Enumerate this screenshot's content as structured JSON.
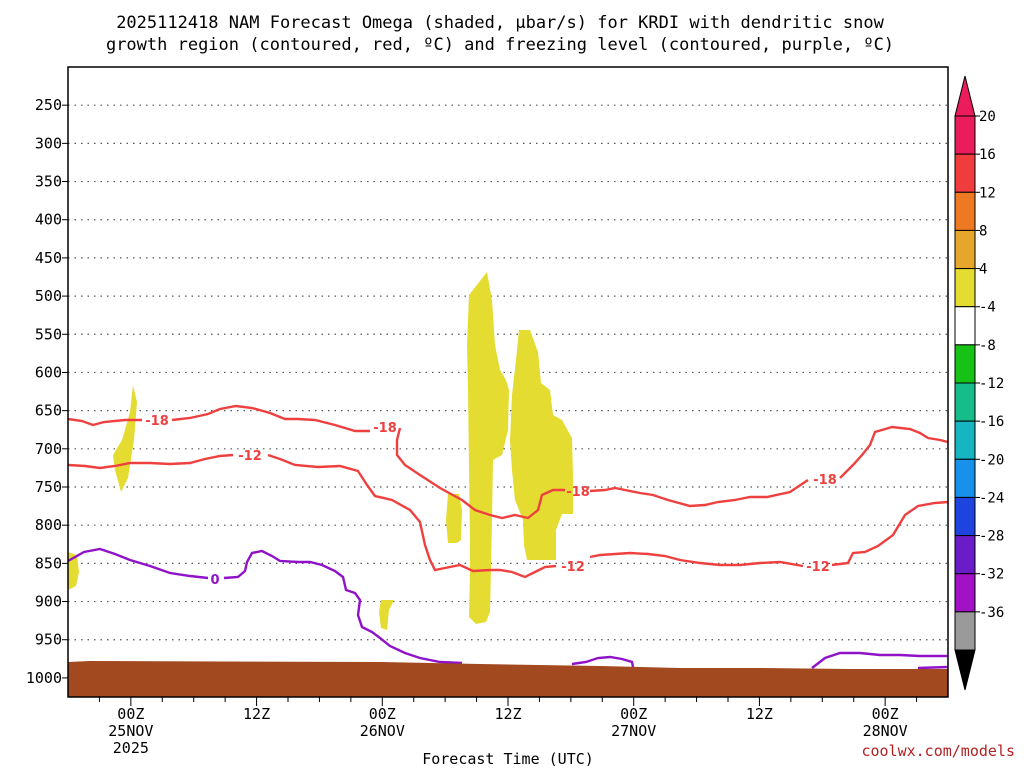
{
  "chart_data": {
    "type": "contour",
    "title_line1": "2025112418 NAM Forecast Omega (shaded, μbar/s) for KRDI with dendritic snow",
    "title_line2": "growth region (contoured, red, ºC) and freezing level (contoured, purple, ºC)",
    "xlabel": "Forecast Time (UTC)",
    "credit": "coolwx.com/models",
    "x_ticks": [
      {
        "label": "00Z",
        "sub": "25NOV",
        "sub2": "2025",
        "h": 6
      },
      {
        "label": "12Z",
        "sub": "",
        "sub2": "",
        "h": 18
      },
      {
        "label": "00Z",
        "sub": "26NOV",
        "sub2": "",
        "h": 30
      },
      {
        "label": "12Z",
        "sub": "",
        "sub2": "",
        "h": 42
      },
      {
        "label": "00Z",
        "sub": "27NOV",
        "sub2": "",
        "h": 54
      },
      {
        "label": "12Z",
        "sub": "",
        "sub2": "",
        "h": 66
      },
      {
        "label": "00Z",
        "sub": "28NOV",
        "sub2": "",
        "h": 78
      }
    ],
    "xlim_hours": [
      0,
      84
    ],
    "y_ticks": [
      "250",
      "300",
      "350",
      "400",
      "450",
      "500",
      "550",
      "600",
      "650",
      "700",
      "750",
      "800",
      "850",
      "900",
      "950",
      "1000"
    ],
    "ylim_hpa": [
      200,
      1025
    ],
    "grid": true,
    "colorbar": {
      "labels": [
        "20",
        "16",
        "12",
        "8",
        "4",
        "-4",
        "-8",
        "-12",
        "-16",
        "-20",
        "-24",
        "-28",
        "-32",
        "-36"
      ],
      "colors": [
        "#ea1c5c",
        "#f03c3c",
        "#ed7a22",
        "#e6a62b",
        "#e5dc32",
        "#ffffff",
        "#17c217",
        "#16bc8a",
        "#17b4c2",
        "#1891ea",
        "#1e44e0",
        "#6a1cc9",
        "#a012c4",
        "#9a9a9a"
      ]
    },
    "series": [
      {
        "name": "omega",
        "color": "#e5dc32"
      },
      {
        "name": "dendritic -18",
        "color": "#ef4040",
        "label": "-18"
      },
      {
        "name": "dendritic -12",
        "color": "#ef4040",
        "label": "-12"
      },
      {
        "name": "freezing level",
        "color": "#9012c8",
        "label": "0"
      },
      {
        "name": "terrain",
        "color": "#a2491f"
      }
    ]
  }
}
